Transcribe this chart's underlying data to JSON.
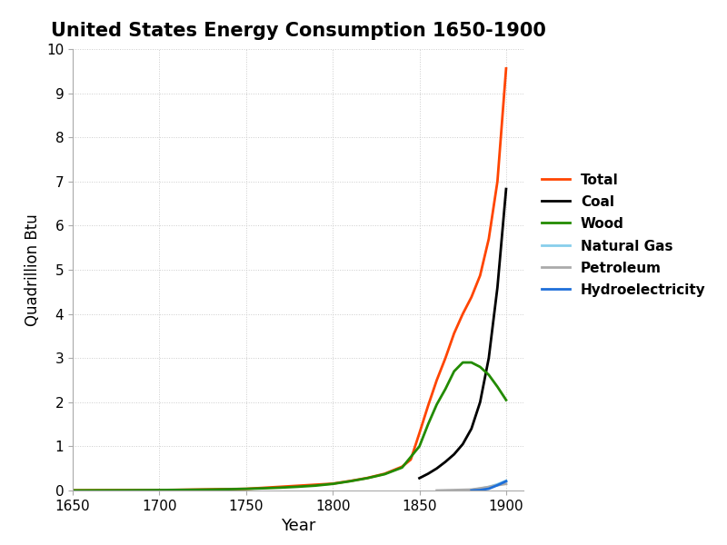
{
  "title": "United States Energy Consumption 1650-1900",
  "xlabel": "Year",
  "ylabel": "Quadrillion Btu",
  "xlim": [
    1650,
    1910
  ],
  "ylim": [
    0,
    10
  ],
  "yticks": [
    0,
    1,
    2,
    3,
    4,
    5,
    6,
    7,
    8,
    9,
    10
  ],
  "xticks": [
    1650,
    1700,
    1750,
    1800,
    1850,
    1900
  ],
  "series": {
    "Wood": {
      "color": "#228B00",
      "linewidth": 2.0,
      "data": [
        [
          1650,
          0.003
        ],
        [
          1660,
          0.004
        ],
        [
          1670,
          0.005
        ],
        [
          1680,
          0.006
        ],
        [
          1690,
          0.008
        ],
        [
          1700,
          0.01
        ],
        [
          1710,
          0.013
        ],
        [
          1720,
          0.017
        ],
        [
          1730,
          0.022
        ],
        [
          1740,
          0.029
        ],
        [
          1750,
          0.038
        ],
        [
          1760,
          0.05
        ],
        [
          1770,
          0.065
        ],
        [
          1780,
          0.085
        ],
        [
          1790,
          0.11
        ],
        [
          1800,
          0.15
        ],
        [
          1810,
          0.21
        ],
        [
          1820,
          0.28
        ],
        [
          1830,
          0.37
        ],
        [
          1840,
          0.52
        ],
        [
          1850,
          1.0
        ],
        [
          1855,
          1.5
        ],
        [
          1860,
          1.95
        ],
        [
          1865,
          2.3
        ],
        [
          1870,
          2.7
        ],
        [
          1875,
          2.9
        ],
        [
          1880,
          2.9
        ],
        [
          1885,
          2.8
        ],
        [
          1890,
          2.62
        ],
        [
          1895,
          2.35
        ],
        [
          1900,
          2.05
        ]
      ]
    },
    "Coal": {
      "color": "#000000",
      "linewidth": 2.0,
      "data": [
        [
          1850,
          0.28
        ],
        [
          1855,
          0.38
        ],
        [
          1860,
          0.5
        ],
        [
          1865,
          0.65
        ],
        [
          1870,
          0.82
        ],
        [
          1875,
          1.05
        ],
        [
          1880,
          1.4
        ],
        [
          1885,
          2.0
        ],
        [
          1890,
          3.0
        ],
        [
          1895,
          4.6
        ],
        [
          1900,
          6.83
        ]
      ]
    },
    "Total": {
      "color": "#FF4500",
      "linewidth": 2.0,
      "data": [
        [
          1650,
          0.003
        ],
        [
          1700,
          0.01
        ],
        [
          1750,
          0.038
        ],
        [
          1800,
          0.155
        ],
        [
          1810,
          0.215
        ],
        [
          1820,
          0.285
        ],
        [
          1830,
          0.38
        ],
        [
          1840,
          0.54
        ],
        [
          1845,
          0.7
        ],
        [
          1850,
          1.3
        ],
        [
          1855,
          1.92
        ],
        [
          1860,
          2.5
        ],
        [
          1865,
          3.0
        ],
        [
          1870,
          3.56
        ],
        [
          1875,
          4.0
        ],
        [
          1880,
          4.38
        ],
        [
          1885,
          4.87
        ],
        [
          1890,
          5.7
        ],
        [
          1895,
          7.0
        ],
        [
          1900,
          9.56
        ]
      ]
    },
    "Natural Gas": {
      "color": "#87CEEB",
      "linewidth": 2.0,
      "data": [
        [
          1880,
          0.01
        ],
        [
          1885,
          0.04
        ],
        [
          1890,
          0.08
        ],
        [
          1895,
          0.14
        ],
        [
          1900,
          0.22
        ]
      ]
    },
    "Petroleum": {
      "color": "#AAAAAA",
      "linewidth": 2.0,
      "data": [
        [
          1860,
          0.0
        ],
        [
          1870,
          0.01
        ],
        [
          1880,
          0.02
        ],
        [
          1885,
          0.05
        ],
        [
          1890,
          0.08
        ],
        [
          1895,
          0.12
        ],
        [
          1900,
          0.15
        ]
      ]
    },
    "Hydroelectricity": {
      "color": "#1E6FD9",
      "linewidth": 2.0,
      "data": [
        [
          1880,
          0.0
        ],
        [
          1885,
          0.01
        ],
        [
          1890,
          0.04
        ],
        [
          1895,
          0.12
        ],
        [
          1900,
          0.21
        ]
      ]
    }
  },
  "legend_order": [
    "Total",
    "Coal",
    "Wood",
    "Natural Gas",
    "Petroleum",
    "Hydroelectricity"
  ],
  "background_color": "#FFFFFF",
  "grid_color": "#CCCCCC"
}
